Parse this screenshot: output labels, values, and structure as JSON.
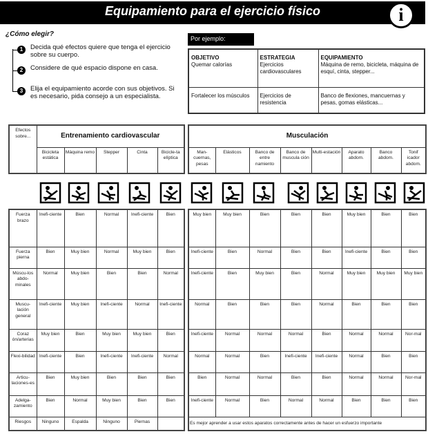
{
  "header": {
    "title": "Equipamiento para el ejercicio físico",
    "info_icon": "info-icon"
  },
  "how": {
    "title": "¿Cómo elegir?",
    "steps": [
      {
        "num": "1",
        "text": "Decida qué efectos quiere que tenga el ejercicio sobre su cuerpo."
      },
      {
        "num": "2",
        "text": "Considere de qué espacio dispone en casa."
      },
      {
        "num": "3",
        "text": "Elija el equipamiento acorde con sus objetivos. Si es necesario, pida consejo a un especialista."
      }
    ]
  },
  "example": {
    "label": "Por ejemplo:",
    "headers": [
      "OBJETIVO",
      "ESTRATEGIA",
      "EQUIPAMIENTO"
    ],
    "rows": [
      [
        "Quemar calorías",
        "Ejercicios cardiovasculares",
        "Máquina de remo, bicicleta, máquina de esquí, cinta, stepper..."
      ],
      [
        "Fortalecer los músculos",
        "Ejercicios de resistencia",
        "Banco de flexiones, mancuernas y pesas, gomas elásticas..."
      ]
    ]
  },
  "table": {
    "corner": "Efectos sobre...",
    "cardio": {
      "title": "Entrenamiento cardiovascular",
      "columns": [
        "Bicicleta estática",
        "Máquina remo",
        "Stepper",
        "Cinta",
        "Bicicle-ta elíptica"
      ]
    },
    "muscle": {
      "title": "Musculación",
      "columns": [
        "Man-cuernas, pesas",
        "Elásticos",
        "Banco de entre namiento",
        "Banco de muscula ción",
        "Multi-estación",
        "Aparato abdom.",
        "Banco abdom.",
        "Tonif icador abdom."
      ]
    },
    "rows": [
      {
        "label": "Fuerza brazo",
        "cardio": [
          "Inefi-ciente",
          "Bien",
          "Normal",
          "Inefi-ciente",
          "Bien"
        ],
        "muscle": [
          "Muy bien",
          "Muy bien",
          "Bien",
          "Bien",
          "Bien",
          "Muy bien",
          "Bien",
          "Bien"
        ]
      },
      {
        "label": "Fuerza pierna",
        "cardio": [
          "Bien",
          "Muy bien",
          "Normal",
          "Muy bien",
          "Bien"
        ],
        "muscle": [
          "Inefi-ciente",
          "Bien",
          "Normal",
          "Bien",
          "Bien",
          "Inefi-ciente",
          "Bien",
          "Bien"
        ]
      },
      {
        "label": "Múscu-los abdo-minales",
        "cardio": [
          "Normal",
          "Muy bien",
          "Bien",
          "Bien",
          "Normal"
        ],
        "muscle": [
          "Inefi-ciente",
          "Bien",
          "Muy bien",
          "Bien",
          "Normal",
          "Muy bien",
          "Muy bien",
          "Muy bien"
        ]
      },
      {
        "label": "Muscu-lación general",
        "cardio": [
          "Inefi-ciente",
          "Muy bien",
          "Inefi-ciente",
          "Normal",
          "Inefi-ciente"
        ],
        "muscle": [
          "Normal",
          "Bien",
          "Bien",
          "Bien",
          "Normal",
          "Bien",
          "Bien",
          "Bien"
        ]
      },
      {
        "label": "Coraz ón/arterias",
        "cardio": [
          "Muy bien",
          "Bien",
          "Muy bien",
          "Muy bien",
          "Bien"
        ],
        "muscle": [
          "Inefi-ciente",
          "Normal",
          "Normal",
          "Normal",
          "Bien",
          "Normal",
          "Normal",
          "Nor-mal"
        ]
      },
      {
        "label": "Flexi-bilidad",
        "cardio": [
          "Inefi-ciente",
          "Bien",
          "Inefi-ciente",
          "Inefi-ciente",
          "Normal"
        ],
        "muscle": [
          "Normal",
          "Normal",
          "Bien",
          "Inefi-ciente",
          "Inefi-ciente",
          "Normal",
          "Bien",
          "Bien"
        ]
      },
      {
        "label": "Articu-laciones-es",
        "cardio": [
          "Bien",
          "Muy bien",
          "Bien",
          "Bien",
          "Bien"
        ],
        "muscle": [
          "Bien",
          "Normal",
          "Normal",
          "Bien",
          "Bien",
          "Normal",
          "Normal",
          "Nor-mal"
        ]
      },
      {
        "label": "Adelga-zamiento",
        "cardio": [
          "Bien",
          "Normal",
          "Muy bien",
          "Bien",
          "Bien"
        ],
        "muscle": [
          "Inefi-ciente",
          "Normal",
          "Bien",
          "Normal",
          "Normal",
          "Bien",
          "Bien",
          "Bien"
        ]
      }
    ],
    "risks": {
      "label": "Riesgos",
      "cardio": [
        "Ninguno",
        "Espalda",
        "Ninguno",
        "Piernas",
        ""
      ],
      "muscle_note": "Es mejor aprender a usar estos aparatos correctamente antes de hacer un esfuerzo importante"
    }
  }
}
